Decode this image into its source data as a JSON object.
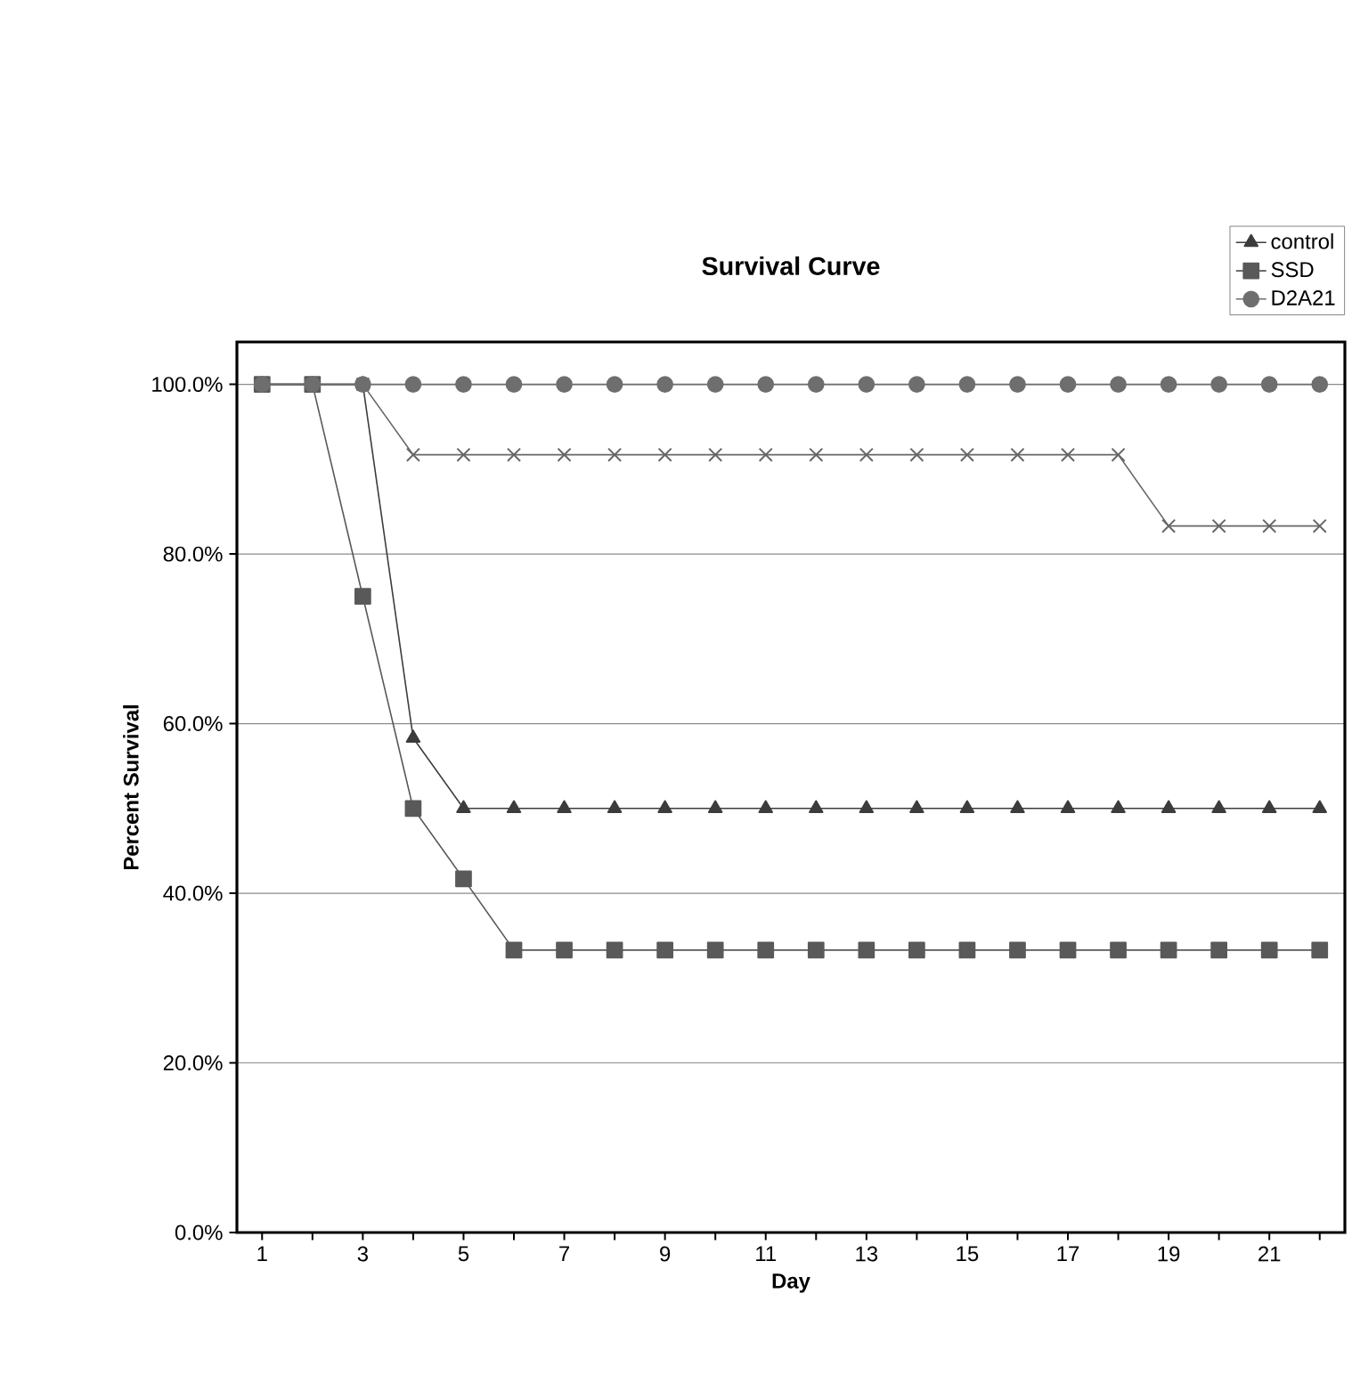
{
  "chart_data": {
    "type": "line",
    "title": "Survival Curve",
    "xlabel": "Day",
    "ylabel": "Percent Survival",
    "categories": [
      "1",
      null,
      "3",
      null,
      "5",
      null,
      "7",
      null,
      "9",
      null,
      "11",
      null,
      "13",
      null,
      "15",
      null,
      "17",
      null,
      "19",
      null,
      "21",
      null
    ],
    "ylim": [
      0,
      105
    ],
    "yticks": [
      {
        "value": 0,
        "label": "0.0%"
      },
      {
        "value": 20,
        "label": "20.0%"
      },
      {
        "value": 40,
        "label": "40.0%"
      },
      {
        "value": 60,
        "label": "60.0%"
      },
      {
        "value": 80,
        "label": "80.0%"
      },
      {
        "value": 100,
        "label": "100.0%"
      }
    ],
    "grid": "y",
    "legend": "top right",
    "series": [
      {
        "name": "control",
        "color": "#3c3c3c",
        "marker": "triangle",
        "values": [
          100,
          100,
          100,
          58.3,
          50,
          50,
          50,
          50,
          50,
          50,
          50,
          50,
          50,
          50,
          50,
          50,
          50,
          50,
          50,
          50,
          50,
          50
        ]
      },
      {
        "name": "SSD",
        "color": "#595959",
        "marker": "square",
        "values": [
          100,
          100,
          75,
          50,
          41.7,
          33.3,
          33.3,
          33.3,
          33.3,
          33.3,
          33.3,
          33.3,
          33.3,
          33.3,
          33.3,
          33.3,
          33.3,
          33.3,
          33.3,
          33.3,
          33.3,
          33.3
        ]
      },
      {
        "color": "#666666",
        "marker": "cross",
        "values": [
          100,
          100,
          100,
          91.7,
          91.7,
          91.7,
          91.7,
          91.7,
          91.7,
          91.7,
          91.7,
          91.7,
          91.7,
          91.7,
          91.7,
          91.7,
          91.7,
          91.7,
          83.3,
          83.3,
          83.3,
          83.3
        ]
      },
      {
        "name": "D2A21",
        "color": "#6e6e6e",
        "marker": "circle",
        "values": [
          100,
          100,
          100,
          100,
          100,
          100,
          100,
          100,
          100,
          100,
          100,
          100,
          100,
          100,
          100,
          100,
          100,
          100,
          100,
          100,
          100,
          100
        ]
      }
    ]
  }
}
